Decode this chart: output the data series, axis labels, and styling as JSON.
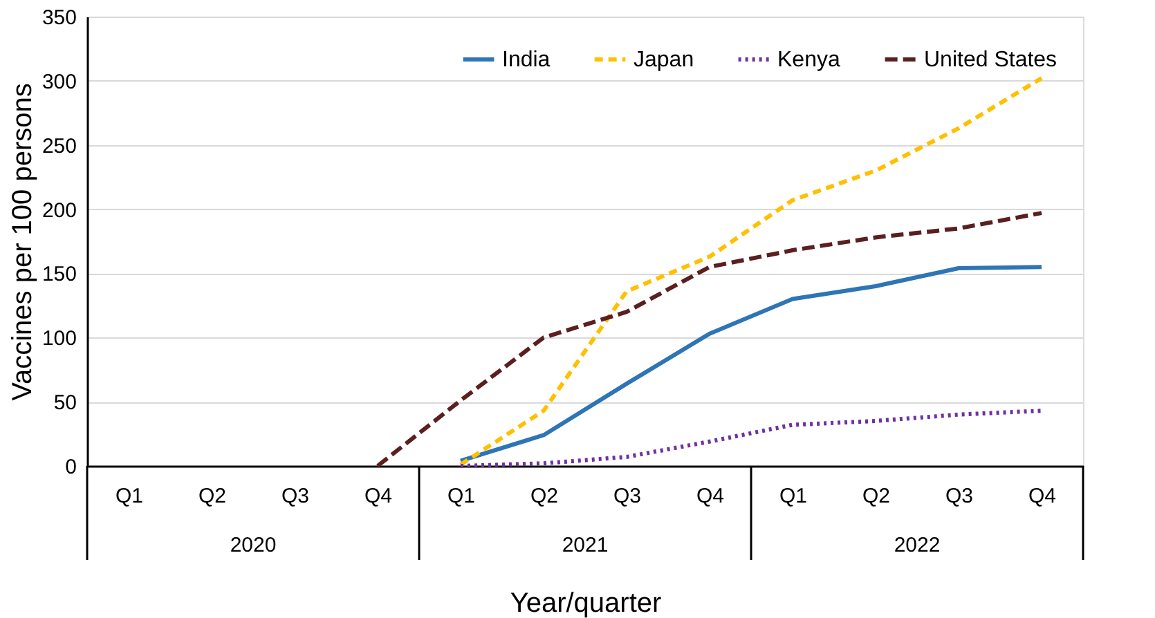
{
  "chart_data": {
    "type": "line",
    "xlabel": "Year/quarter",
    "ylabel": "Vaccines per 100 persons",
    "categories": [
      "Q1",
      "Q2",
      "Q3",
      "Q4",
      "Q1",
      "Q2",
      "Q3",
      "Q4",
      "Q1",
      "Q2",
      "Q3",
      "Q4"
    ],
    "annotations": [
      "2020",
      "2021",
      "2022"
    ],
    "ylim": [
      0,
      350
    ],
    "yticks": [
      0,
      50,
      100,
      150,
      200,
      250,
      300,
      350
    ],
    "grid": "y",
    "legend": "top right",
    "marker": "none",
    "series": [
      {
        "name": "India",
        "color": "#2e75b6",
        "line_style": "solid",
        "values": [
          null,
          null,
          null,
          null,
          4,
          24,
          64,
          103,
          130,
          140,
          154,
          155
        ]
      },
      {
        "name": "Japan",
        "color": "#ffc000",
        "line_style": "dashed",
        "values": [
          null,
          null,
          null,
          null,
          1,
          43,
          136,
          163,
          207,
          230,
          263,
          302
        ]
      },
      {
        "name": "Kenya",
        "color": "#7030a0",
        "line_style": "dotted",
        "values": [
          null,
          null,
          null,
          null,
          0,
          2,
          7,
          19,
          32,
          35,
          40,
          43
        ]
      },
      {
        "name": "United States",
        "color": "#5b1f1f",
        "line_style": "dashed",
        "values": [
          null,
          null,
          null,
          0,
          51,
          100,
          120,
          155,
          168,
          178,
          185,
          197
        ]
      }
    ]
  }
}
